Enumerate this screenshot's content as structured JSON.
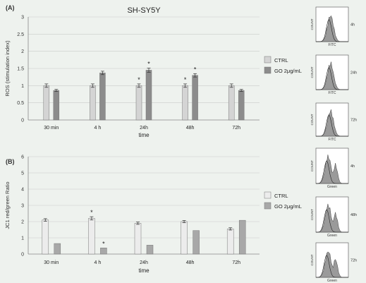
{
  "figure": {
    "cell_line": "SH-SY5Y",
    "panel_a_label": "(A)",
    "panel_b_label": "(B)"
  },
  "chart_data": [
    {
      "type": "bar",
      "panel": "(A)",
      "title": "SH-SY5Y",
      "xlabel": "time",
      "ylabel": "ROS (stimulation index)",
      "categories": [
        "30 min",
        "4 h",
        "24h",
        "48h",
        "72h"
      ],
      "ylim": [
        0,
        3
      ],
      "yticks": [
        "0",
        "0.5",
        "1",
        "1.5",
        "2",
        "2.5",
        "3"
      ],
      "ytick_values": [
        0,
        0.5,
        1,
        1.5,
        2,
        2.5,
        3
      ],
      "grid": "horizontal",
      "legend_position": "right",
      "series": [
        {
          "name": "CTRL",
          "color": "#d4d4d4",
          "values": [
            1.0,
            1.0,
            1.0,
            1.0,
            1.0
          ],
          "errors": [
            0.05,
            0.05,
            0.05,
            0.05,
            0.05
          ],
          "stars": [
            "",
            "",
            "*",
            "*",
            ""
          ]
        },
        {
          "name": "GO 2μg/mL",
          "color": "#8c8c8c",
          "values": [
            0.86,
            1.37,
            1.45,
            1.3,
            0.86
          ],
          "errors": [
            0.03,
            0.05,
            0.06,
            0.05,
            0.03
          ],
          "stars": [
            "",
            "",
            "*",
            "*",
            ""
          ]
        }
      ]
    },
    {
      "type": "bar",
      "panel": "(B)",
      "xlabel": "time",
      "ylabel": "JC1 red/green Ratio",
      "categories": [
        "30 min",
        "4 h",
        "24h",
        "48h",
        "72h"
      ],
      "ylim": [
        0,
        6
      ],
      "yticks": [
        "0",
        "1",
        "2",
        "3",
        "4",
        "5",
        "6"
      ],
      "ytick_values": [
        0,
        1,
        2,
        3,
        4,
        5,
        6
      ],
      "grid": "horizontal",
      "legend_position": "right",
      "series": [
        {
          "name": "CTRL",
          "color": "#ececec",
          "values": [
            2.1,
            2.2,
            1.9,
            2.0,
            1.55
          ],
          "errors": [
            0.08,
            0.1,
            0.07,
            0.07,
            0.07
          ],
          "stars": [
            "",
            "*",
            "",
            "",
            ""
          ]
        },
        {
          "name": "GO 2μg/mL",
          "color": "#a8a8a8",
          "values": [
            0.65,
            0.38,
            0.55,
            1.45,
            2.08
          ],
          "errors": [
            0,
            0,
            0,
            0,
            0
          ],
          "stars": [
            "",
            "*",
            "",
            "",
            ""
          ]
        }
      ]
    }
  ],
  "histograms": {
    "a": {
      "axis_y": "COUNT",
      "axis_x": "FITC",
      "labels": [
        "4h",
        "24h",
        "72h"
      ]
    },
    "b": {
      "axis_y": "COUNT",
      "axis_x": "Green",
      "labels": [
        "4h",
        "48h",
        "72h"
      ]
    }
  }
}
